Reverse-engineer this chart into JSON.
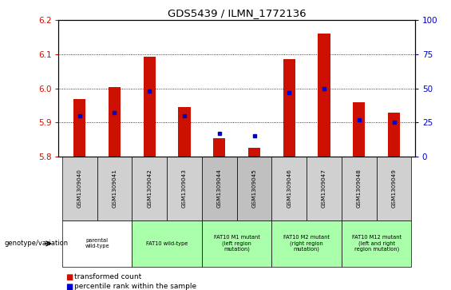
{
  "title": "GDS5439 / ILMN_1772136",
  "samples": [
    "GSM1309040",
    "GSM1309041",
    "GSM1309042",
    "GSM1309043",
    "GSM1309044",
    "GSM1309045",
    "GSM1309046",
    "GSM1309047",
    "GSM1309048",
    "GSM1309049"
  ],
  "transformed_counts": [
    5.97,
    6.005,
    6.093,
    5.945,
    5.855,
    5.825,
    6.085,
    6.16,
    5.96,
    5.93
  ],
  "percentile_ranks": [
    30,
    32,
    48,
    30,
    17,
    15,
    47,
    50,
    27,
    25
  ],
  "ylim_left": [
    5.8,
    6.2
  ],
  "ylim_right": [
    0,
    100
  ],
  "yticks_left": [
    5.8,
    5.9,
    6.0,
    6.1,
    6.2
  ],
  "yticks_right": [
    0,
    25,
    50,
    75,
    100
  ],
  "bar_color": "#cc1100",
  "dot_color": "#0000cc",
  "bar_base": 5.8,
  "sample_bg_colors": [
    "#d0d0d0",
    "#d0d0d0",
    "#d0d0d0",
    "#d0d0d0",
    "#c0c0c0",
    "#c0c0c0",
    "#d0d0d0",
    "#d0d0d0",
    "#d0d0d0",
    "#d0d0d0"
  ],
  "group_defs": [
    {
      "start": 0,
      "end": 1,
      "label": "parental\nwild-type",
      "color": "#ffffff"
    },
    {
      "start": 2,
      "end": 3,
      "label": "FAT10 wild-type",
      "color": "#aaffaa"
    },
    {
      "start": 4,
      "end": 5,
      "label": "FAT10 M1 mutant\n(left region\nmutation)",
      "color": "#aaffaa"
    },
    {
      "start": 6,
      "end": 7,
      "label": "FAT10 M2 mutant\n(right region\nmutation)",
      "color": "#aaffaa"
    },
    {
      "start": 8,
      "end": 9,
      "label": "FAT10 M12 mutant\n(left and right\nregion mutation)",
      "color": "#aaffaa"
    }
  ]
}
